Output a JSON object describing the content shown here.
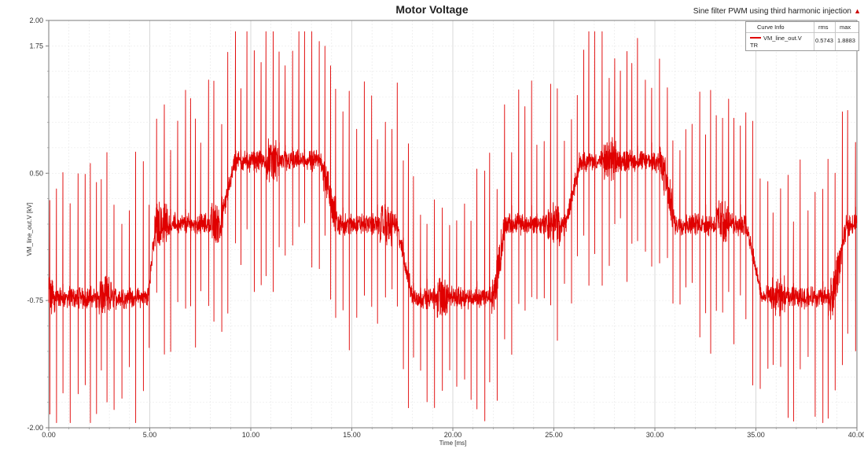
{
  "chart_data": {
    "type": "line",
    "title": "Motor Voltage",
    "subtitle": "Sine filter PWM using third harmonic injection",
    "xlabel": "Time [ms]",
    "ylabel": "VM_line_out.V [kV]",
    "xlim": [
      0,
      40
    ],
    "ylim": [
      -2.0,
      2.0
    ],
    "x_ticks": [
      "0.00",
      "5.00",
      "10.00",
      "15.00",
      "20.00",
      "25.00",
      "30.00",
      "35.00",
      "40.00"
    ],
    "y_ticks": [
      {
        "value": 2.0,
        "label": "2.00"
      },
      {
        "value": 1.75,
        "label": "1.75"
      },
      {
        "value": 0.5,
        "label": "0.50"
      },
      {
        "value": -0.75,
        "label": "-0.75"
      },
      {
        "value": -2.0,
        "label": "-2.00"
      }
    ],
    "grid": true,
    "legend": {
      "placement": "top-right",
      "headers": [
        "Curve Info",
        "rms",
        "max"
      ],
      "series_name": "VM_line_out.V",
      "series_tag": "TR",
      "rms": "0.5743",
      "max": "1.8883"
    },
    "series": [
      {
        "name": "VM_line_out.V",
        "color": "#e00000",
        "fundamental_period_ms": 16.67,
        "level_profile": {
          "t": [
            0,
            4.9,
            5.3,
            8.5,
            9.2,
            13.5,
            14.3,
            17.2,
            18.0,
            22.0,
            22.6,
            25.6,
            26.3,
            30.3,
            31.0,
            34.5,
            35.3,
            38.8,
            39.5,
            40
          ],
          "v": [
            -0.72,
            -0.72,
            0.0,
            0.0,
            0.62,
            0.62,
            0.0,
            0.0,
            -0.72,
            -0.72,
            0.0,
            0.0,
            0.62,
            0.62,
            0.0,
            0.0,
            -0.72,
            -0.72,
            0.0,
            0.0
          ]
        },
        "peak_envelope_kv": 1.89,
        "trough_envelope_kv": -1.95,
        "approx_pulses_per_ms": 3.2
      }
    ]
  }
}
